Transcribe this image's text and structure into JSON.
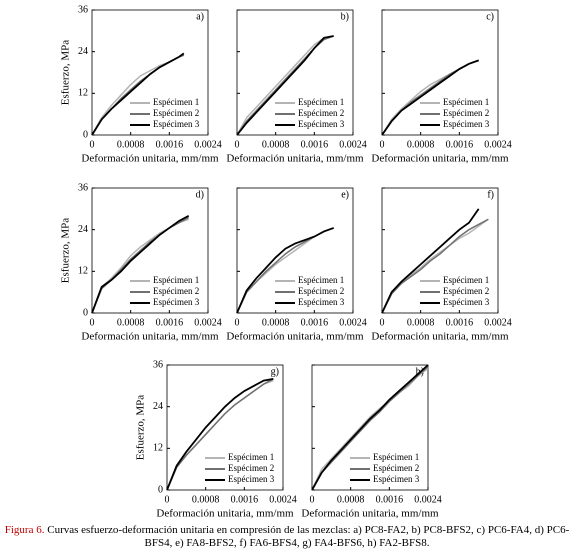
{
  "chart_data": [
    {
      "type": "line",
      "title": "a)",
      "ylabel": "Esfuerzo, MPa",
      "xlabel": "Deformación unitaria, mm/mm",
      "xlim": [
        0,
        0.0024
      ],
      "xticks": [
        0,
        0.0008,
        0.0016,
        0.0024
      ],
      "ylim": [
        0,
        36
      ],
      "yticks": [
        0,
        12,
        24,
        36
      ],
      "x": [
        0,
        0.0002,
        0.0004,
        0.0006,
        0.0008,
        0.001,
        0.0012,
        0.0014,
        0.0016,
        0.0018,
        0.0019
      ],
      "series": [
        {
          "name": "Espécimen 1",
          "color": "#b4b4b4",
          "values": [
            0,
            5,
            8.5,
            11.5,
            14.5,
            17,
            18.5,
            20,
            21,
            22.5,
            23
          ]
        },
        {
          "name": "Espécimen 2",
          "color": "#707070",
          "values": [
            0,
            4.5,
            7.5,
            10.5,
            13,
            15.5,
            17.5,
            19.5,
            21,
            22.5,
            23
          ]
        },
        {
          "name": "Espécimen 3",
          "color": "#000000",
          "values": [
            0,
            4.5,
            7.5,
            10,
            12.5,
            15,
            17.5,
            19.5,
            21,
            22.5,
            23.5
          ]
        }
      ]
    },
    {
      "type": "line",
      "title": "b)",
      "xlabel": "Deformación unitaria, mm/mm",
      "xlim": [
        0,
        0.0024
      ],
      "xticks": [
        0,
        0.0008,
        0.0016,
        0.0024
      ],
      "ylim": [
        0,
        36
      ],
      "yticks": [
        0,
        12,
        24,
        36
      ],
      "x": [
        0,
        0.0002,
        0.0004,
        0.0006,
        0.0008,
        0.001,
        0.0012,
        0.0014,
        0.0016,
        0.0018,
        0.002
      ],
      "series": [
        {
          "name": "Espécimen 1",
          "color": "#b4b4b4",
          "values": [
            0,
            5,
            8,
            11,
            14,
            17,
            20,
            23,
            26,
            28,
            28.5
          ]
        },
        {
          "name": "Espécimen 2",
          "color": "#707070",
          "values": [
            0,
            4,
            7,
            10,
            13,
            16,
            19,
            22,
            25,
            27.5,
            28.5
          ]
        },
        {
          "name": "Espécimen 3",
          "color": "#000000",
          "values": [
            0,
            3.5,
            6.5,
            9.5,
            12.5,
            15.5,
            18.5,
            21.5,
            25,
            28,
            28.5
          ]
        }
      ]
    },
    {
      "type": "line",
      "title": "c)",
      "xlabel": "Deformación unitaria, mm/mm",
      "xlim": [
        0,
        0.0024
      ],
      "xticks": [
        0,
        0.0008,
        0.0016,
        0.0024
      ],
      "ylim": [
        0,
        36
      ],
      "yticks": [
        0,
        12,
        24,
        36
      ],
      "x": [
        0,
        0.0002,
        0.0004,
        0.0006,
        0.0008,
        0.001,
        0.0012,
        0.0014,
        0.0016,
        0.0018,
        0.002
      ],
      "series": [
        {
          "name": "Espécimen 1",
          "color": "#b4b4b4",
          "values": [
            0,
            4.5,
            7.5,
            10,
            12.5,
            14.5,
            16,
            17.5,
            19,
            20.5,
            21.5
          ]
        },
        {
          "name": "Espécimen 2",
          "color": "#707070",
          "values": [
            0,
            4,
            7,
            9.5,
            11.5,
            13.5,
            15.5,
            17.5,
            19,
            20.5,
            21.5
          ]
        },
        {
          "name": "Espécimen 3",
          "color": "#000000",
          "values": [
            0,
            4,
            7,
            9,
            11,
            13,
            15,
            17,
            19,
            20.5,
            21.5
          ]
        }
      ]
    },
    {
      "type": "line",
      "title": "d)",
      "ylabel": "Esfuerzo, MPa",
      "xlabel": "Deformación unitaria, mm/mm",
      "xlim": [
        0,
        0.0024
      ],
      "xticks": [
        0,
        0.0008,
        0.0016,
        0.0024
      ],
      "ylim": [
        0,
        36
      ],
      "yticks": [
        0,
        12,
        24,
        36
      ],
      "x": [
        0,
        0.0002,
        0.0004,
        0.0006,
        0.0008,
        0.001,
        0.0012,
        0.0014,
        0.0016,
        0.0018,
        0.002
      ],
      "series": [
        {
          "name": "Espécimen 1",
          "color": "#b4b4b4",
          "values": [
            0,
            7.5,
            10,
            13,
            16.5,
            19,
            21,
            23,
            24.5,
            26,
            27
          ]
        },
        {
          "name": "Espécimen 2",
          "color": "#707070",
          "values": [
            0,
            7,
            9.5,
            12.5,
            15.5,
            18,
            20.5,
            22.5,
            24.5,
            26,
            27.5
          ]
        },
        {
          "name": "Espécimen 3",
          "color": "#000000",
          "values": [
            0,
            7.5,
            9.5,
            12,
            15,
            17.5,
            20,
            22.5,
            24.5,
            26.5,
            28
          ]
        }
      ]
    },
    {
      "type": "line",
      "title": "e)",
      "xlabel": "Deformación unitaria, mm/mm",
      "xlim": [
        0,
        0.0024
      ],
      "xticks": [
        0,
        0.0008,
        0.0016,
        0.0024
      ],
      "ylim": [
        0,
        36
      ],
      "yticks": [
        0,
        12,
        24,
        36
      ],
      "x": [
        0,
        0.0002,
        0.0004,
        0.0006,
        0.0008,
        0.001,
        0.0012,
        0.0014,
        0.0016,
        0.0018,
        0.002
      ],
      "series": [
        {
          "name": "Espécimen 1",
          "color": "#b4b4b4",
          "values": [
            0,
            6,
            9,
            11.5,
            14,
            16,
            18,
            20,
            22,
            23.5,
            24.5
          ]
        },
        {
          "name": "Espécimen 2",
          "color": "#707070",
          "values": [
            0,
            6,
            9,
            12,
            14.5,
            17,
            19,
            20.5,
            22,
            23.5,
            24.5
          ]
        },
        {
          "name": "Espécimen 3",
          "color": "#000000",
          "values": [
            0,
            6.5,
            10,
            13,
            16,
            18.5,
            20,
            21,
            22,
            23.5,
            24.5
          ]
        }
      ]
    },
    {
      "type": "line",
      "title": "f)",
      "xlabel": "Deformación unitaria, mm/mm",
      "xlim": [
        0,
        0.0024
      ],
      "xticks": [
        0,
        0.0008,
        0.0016,
        0.0024
      ],
      "ylim": [
        0,
        36
      ],
      "yticks": [
        0,
        12,
        24,
        36
      ],
      "x": [
        0,
        0.0002,
        0.0004,
        0.0006,
        0.0008,
        0.001,
        0.0012,
        0.0014,
        0.0016,
        0.0018,
        0.002,
        0.0022
      ],
      "series": [
        {
          "name": "Espécimen 1",
          "color": "#b4b4b4",
          "values": [
            0,
            6,
            8.5,
            11,
            13,
            15.5,
            17.5,
            19.5,
            21.5,
            23,
            25,
            27
          ]
        },
        {
          "name": "Espécimen 2",
          "color": "#707070",
          "values": [
            0,
            5.5,
            8.5,
            10.5,
            12.5,
            15,
            17,
            19.5,
            22,
            24,
            25.5,
            27
          ]
        },
        {
          "name": "Espécimen 3",
          "color": "#000000",
          "values": [
            0,
            6,
            9,
            11.5,
            14,
            16.5,
            19,
            21.5,
            24,
            26,
            30,
            null
          ]
        }
      ]
    },
    {
      "type": "line",
      "title": "g)",
      "ylabel": "Esfuerzo, MPa",
      "xlabel": "Deformación unitaria, mm/mm",
      "xlim": [
        0,
        0.0024
      ],
      "xticks": [
        0,
        0.0008,
        0.0016,
        0.0024
      ],
      "ylim": [
        0,
        36
      ],
      "yticks": [
        0,
        12,
        24,
        36
      ],
      "x": [
        0,
        0.0002,
        0.0004,
        0.0006,
        0.0008,
        0.001,
        0.0012,
        0.0014,
        0.0016,
        0.0018,
        0.002,
        0.0022
      ],
      "series": [
        {
          "name": "Espécimen 1",
          "color": "#b4b4b4",
          "values": [
            0,
            7,
            10,
            13,
            16,
            19,
            22,
            24.5,
            26.5,
            28.5,
            30.5,
            31.5
          ]
        },
        {
          "name": "Espécimen 2",
          "color": "#707070",
          "values": [
            0,
            6.5,
            10,
            13,
            16,
            19,
            22,
            24.5,
            26.5,
            28.5,
            30.5,
            32
          ]
        },
        {
          "name": "Espécimen 3",
          "color": "#000000",
          "values": [
            0,
            7,
            11,
            14.5,
            18,
            21,
            24,
            26.5,
            28.5,
            30,
            31.5,
            32
          ]
        }
      ]
    },
    {
      "type": "line",
      "title": "h)",
      "xlabel": "Deformación unitaria, mm/mm",
      "xlim": [
        0,
        0.0024
      ],
      "xticks": [
        0,
        0.0008,
        0.0016,
        0.0024
      ],
      "ylim": [
        0,
        36
      ],
      "yticks": [
        0,
        12,
        24,
        36
      ],
      "x": [
        0,
        0.0002,
        0.0004,
        0.0006,
        0.0008,
        0.001,
        0.0012,
        0.0014,
        0.0016,
        0.0018,
        0.002,
        0.0022,
        0.0024
      ],
      "series": [
        {
          "name": "Espécimen 1",
          "color": "#b4b4b4",
          "values": [
            0,
            6,
            9,
            12,
            15,
            18,
            21,
            23.5,
            25.5,
            28,
            30,
            33,
            35
          ]
        },
        {
          "name": "Espécimen 2",
          "color": "#707070",
          "values": [
            0,
            5,
            8,
            11,
            14,
            17,
            20,
            22.5,
            25.5,
            28,
            30.5,
            33,
            35.5
          ]
        },
        {
          "name": "Espécimen 3",
          "color": "#000000",
          "values": [
            0,
            5,
            8.5,
            11.5,
            14.5,
            17.5,
            20.5,
            23,
            26,
            28.5,
            31,
            33.5,
            36
          ]
        }
      ]
    }
  ],
  "caption": {
    "label": "Figura 6.",
    "text": "Curvas esfuerzo-deformación unitaria en compresión de las mezclas: a) PC8-FA2, b) PC8-BFS2, c) PC6-FA4, d) PC6-BFS4, e) FA8-BFS2, f) FA6-BFS4, g) FA4-BFS6, h) FA2-BFS8."
  }
}
